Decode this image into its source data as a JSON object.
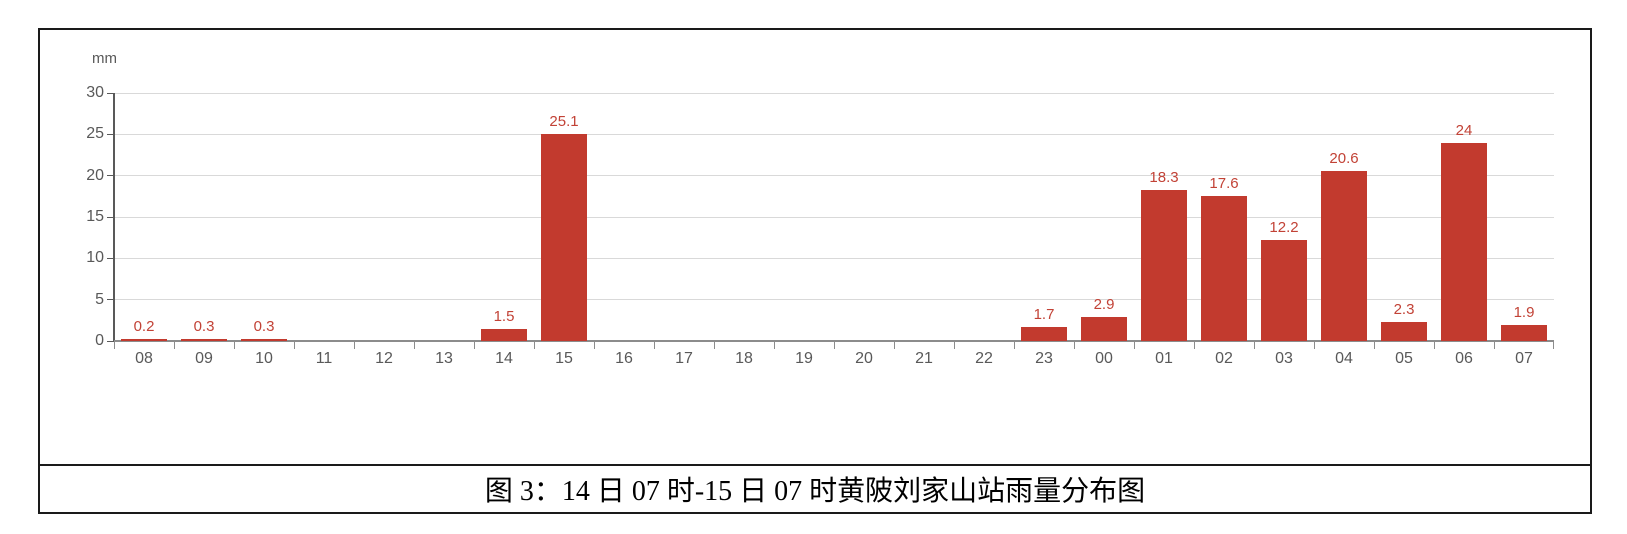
{
  "figure": {
    "caption": "图 3：14 日 07 时-15 日 07 时黄陂刘家山站雨量分布图"
  },
  "chart_data": {
    "type": "bar",
    "title": "",
    "unit_label": "mm",
    "xlabel": "",
    "ylabel": "mm",
    "categories": [
      "08",
      "09",
      "10",
      "11",
      "12",
      "13",
      "14",
      "15",
      "16",
      "17",
      "18",
      "19",
      "20",
      "21",
      "22",
      "23",
      "00",
      "01",
      "02",
      "03",
      "04",
      "05",
      "06",
      "07"
    ],
    "values": [
      0.2,
      0.3,
      0.3,
      0,
      0,
      0,
      1.5,
      25.1,
      0,
      0,
      0,
      0,
      0,
      0,
      0,
      1.7,
      2.9,
      18.3,
      17.6,
      12.2,
      20.6,
      2.3,
      24,
      1.9
    ],
    "value_labels": [
      "0.2",
      "0.3",
      "0.3",
      "",
      "",
      "",
      "1.5",
      "25.1",
      "",
      "",
      "",
      "",
      "",
      "",
      "",
      "1.7",
      "2.9",
      "18.3",
      "17.6",
      "12.2",
      "20.6",
      "2.3",
      "24",
      "1.9"
    ],
    "ylim": [
      0,
      30
    ],
    "yticks": [
      0,
      5,
      10,
      15,
      20,
      25,
      30
    ],
    "grid": true,
    "legend": false,
    "colors": {
      "bar": "#c23a2e",
      "label": "#c24236",
      "axis-text": "#595959",
      "gridline": "#d9d9d9",
      "axis-line": "#8c8c8c",
      "axis-strong": "#595959"
    }
  }
}
